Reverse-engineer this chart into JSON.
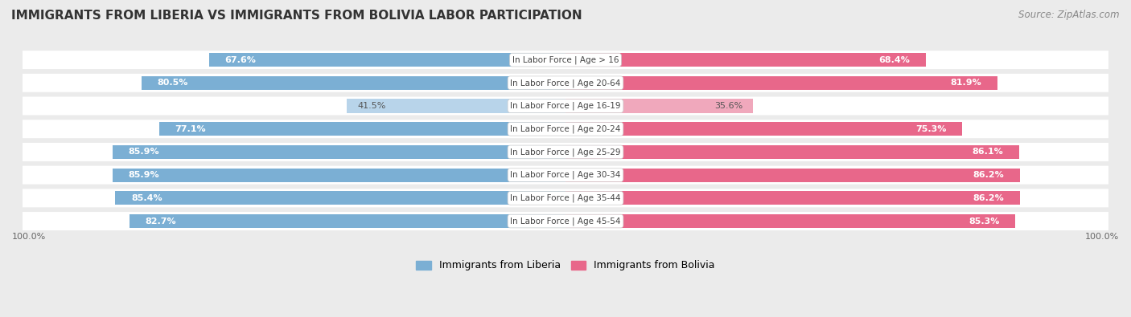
{
  "title": "IMMIGRANTS FROM LIBERIA VS IMMIGRANTS FROM BOLIVIA LABOR PARTICIPATION",
  "source": "Source: ZipAtlas.com",
  "categories": [
    "In Labor Force | Age > 16",
    "In Labor Force | Age 20-64",
    "In Labor Force | Age 16-19",
    "In Labor Force | Age 20-24",
    "In Labor Force | Age 25-29",
    "In Labor Force | Age 30-34",
    "In Labor Force | Age 35-44",
    "In Labor Force | Age 45-54"
  ],
  "liberia_values": [
    67.6,
    80.5,
    41.5,
    77.1,
    85.9,
    85.9,
    85.4,
    82.7
  ],
  "bolivia_values": [
    68.4,
    81.9,
    35.6,
    75.3,
    86.1,
    86.2,
    86.2,
    85.3
  ],
  "liberia_color": "#7bafd4",
  "liberia_light_color": "#b8d4ea",
  "bolivia_color": "#e8678a",
  "bolivia_light_color": "#f0a8bc",
  "bar_height": 0.6,
  "bg_color": "#ebebeb",
  "row_bg_color": "#ffffff",
  "max_value": 100.0,
  "legend_liberia": "Immigrants from Liberia",
  "legend_bolivia": "Immigrants from Bolivia"
}
